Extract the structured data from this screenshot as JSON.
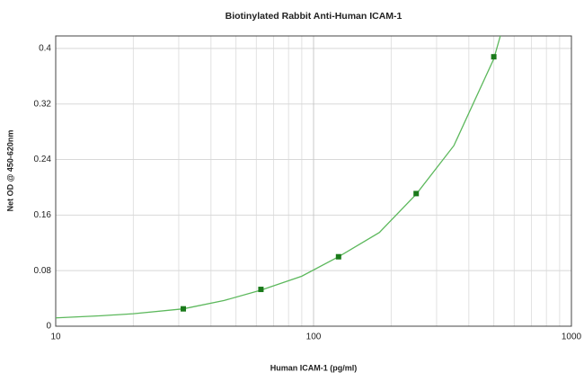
{
  "chart_data": {
    "type": "scatter",
    "title": "Biotinylated Rabbit Anti-Human ICAM-1",
    "x_label": "Human ICAM-1 (pg/ml)",
    "y_label": "Net OD @ 450-620nm",
    "xscale": "log",
    "xlim": [
      10,
      1000
    ],
    "xticks": [
      10,
      100,
      1000
    ],
    "xminor": [
      20,
      30,
      40,
      50,
      60,
      70,
      80,
      90,
      200,
      300,
      400,
      500,
      600,
      700,
      800,
      900
    ],
    "ylim": [
      0,
      0.418
    ],
    "yticks": [
      0,
      0.08,
      0.16,
      0.24,
      0.32,
      0.4
    ],
    "grid": true,
    "series": [
      {
        "kind": "fit",
        "color": "#5cb85c",
        "x": [
          10,
          15,
          20,
          31.25,
          45,
          62.5,
          90,
          125,
          180,
          250,
          350,
          500,
          530
        ],
        "values": [
          0.012,
          0.015,
          0.018,
          0.025,
          0.037,
          0.052,
          0.072,
          0.1,
          0.135,
          0.19,
          0.26,
          0.385,
          0.418
        ]
      },
      {
        "kind": "points",
        "color": "#1a7a1a",
        "x": [
          31.25,
          62.5,
          125,
          250,
          500
        ],
        "values": [
          0.025,
          0.053,
          0.1,
          0.191,
          0.388
        ]
      }
    ]
  }
}
